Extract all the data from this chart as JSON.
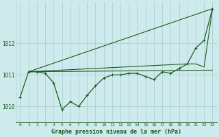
{
  "title": "Graphe pression niveau de la mer (hPa)",
  "background_color": "#ceeaed",
  "grid_color": "#b0d5d8",
  "line_color": "#1a5c1a",
  "xlim": [
    -0.5,
    23.5
  ],
  "ylim": [
    1009.5,
    1013.3
  ],
  "yticks": [
    1010,
    1011,
    1012
  ],
  "xticks": [
    0,
    1,
    2,
    3,
    4,
    5,
    6,
    7,
    8,
    9,
    10,
    11,
    12,
    13,
    14,
    15,
    16,
    17,
    18,
    19,
    20,
    21,
    22,
    23
  ],
  "series_main": {
    "x": [
      0,
      1,
      2,
      3,
      4,
      5,
      6,
      7,
      8,
      9,
      10,
      11,
      12,
      13,
      14,
      15,
      16,
      17,
      18,
      19,
      20,
      21,
      22,
      23
    ],
    "y": [
      1010.3,
      1011.1,
      1011.1,
      1011.05,
      1010.75,
      1009.9,
      1010.15,
      1010.0,
      1010.35,
      1010.65,
      1010.9,
      1011.0,
      1011.0,
      1011.05,
      1011.05,
      1010.95,
      1010.85,
      1011.1,
      1011.05,
      1011.2,
      1011.35,
      1011.85,
      1012.1,
      1013.1
    ]
  },
  "series_triangle_top": {
    "x": [
      1,
      23
    ],
    "y": [
      1011.1,
      1013.1
    ]
  },
  "series_flat": {
    "x": [
      1,
      23
    ],
    "y": [
      1011.1,
      1011.15
    ]
  },
  "series_triangle_bottom": {
    "x": [
      1,
      20,
      21,
      22,
      23
    ],
    "y": [
      1011.1,
      1011.35,
      1011.35,
      1011.25,
      1013.1
    ]
  }
}
